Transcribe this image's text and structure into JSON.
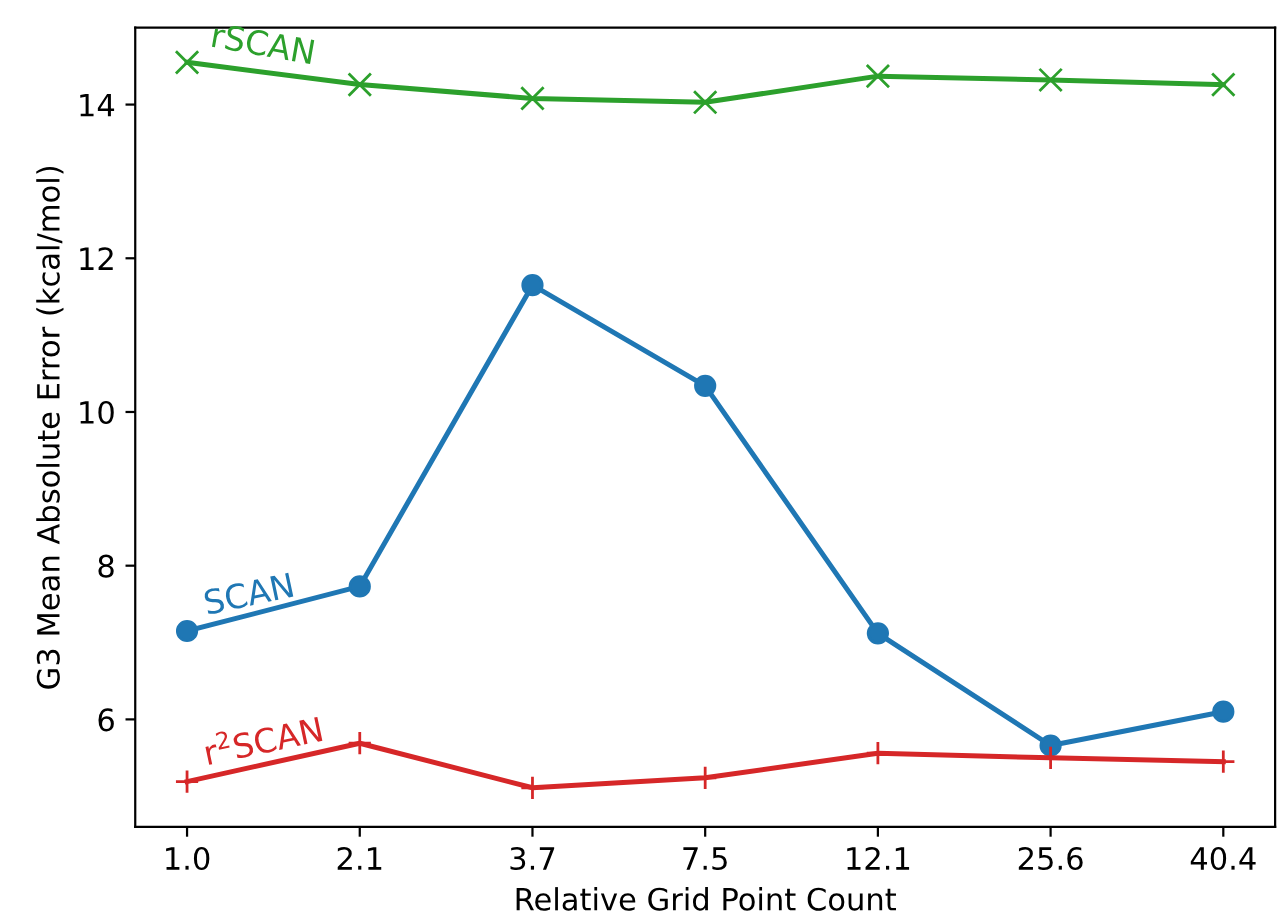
{
  "chart_data": {
    "type": "line",
    "xlabel": "Relative Grid Point Count",
    "ylabel": "G3 Mean Absolute Error (kcal/mol)",
    "categories": [
      "1.0",
      "2.1",
      "3.7",
      "7.5",
      "12.1",
      "25.6",
      "40.4"
    ],
    "series": [
      {
        "name": "rSCAN",
        "color": "#2ca02c",
        "marker": "cross",
        "values": [
          14.55,
          14.26,
          14.08,
          14.03,
          14.37,
          14.32,
          14.26
        ]
      },
      {
        "name": "SCAN",
        "color": "#1f77b4",
        "marker": "circle",
        "values": [
          7.15,
          7.73,
          11.65,
          10.34,
          7.12,
          5.66,
          6.1
        ]
      },
      {
        "name": "r$^{2}$SCAN",
        "color": "#d62728",
        "marker": "plus",
        "values": [
          5.19,
          5.69,
          5.11,
          5.24,
          5.56,
          5.5,
          5.45
        ]
      }
    ],
    "ylim": [
      4.6,
      15.0
    ],
    "yticks": [
      6,
      8,
      10,
      12,
      14
    ],
    "grid": false,
    "legend": false
  }
}
